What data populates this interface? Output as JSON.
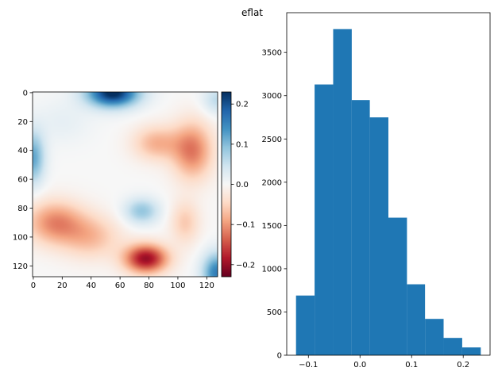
{
  "figure_title": "eflat",
  "colors": {
    "hist_bar": "#1f77b4",
    "axis": "#000000",
    "background": "#ffffff"
  },
  "chart_data": [
    {
      "type": "heatmap",
      "colormap": "RdBu",
      "x_range": [
        0,
        127
      ],
      "y_range": [
        0,
        127
      ],
      "y_inverted": true,
      "x_ticks": [
        "0",
        "20",
        "40",
        "60",
        "80",
        "100",
        "120"
      ],
      "y_ticks": [
        "0",
        "20",
        "40",
        "60",
        "80",
        "100",
        "120"
      ],
      "colorbar": {
        "range": [
          -0.23,
          0.23
        ],
        "ticks": [
          {
            "value": 0.2,
            "label": "0.2"
          },
          {
            "value": 0.1,
            "label": "0.1"
          },
          {
            "value": 0.0,
            "label": "0.0"
          },
          {
            "value": -0.1,
            "label": "−0.1"
          },
          {
            "value": -0.2,
            "label": "−0.2"
          }
        ]
      },
      "blobs": [
        {
          "x": 55,
          "y": 0,
          "sx": 18,
          "sy": 10,
          "amp": 0.24
        },
        {
          "x": 0,
          "y": 45,
          "sx": 8,
          "sy": 18,
          "amp": 0.12
        },
        {
          "x": 127,
          "y": 125,
          "sx": 10,
          "sy": 14,
          "amp": 0.16
        },
        {
          "x": 127,
          "y": 5,
          "sx": 10,
          "sy": 10,
          "amp": 0.06
        },
        {
          "x": 75,
          "y": 82,
          "sx": 12,
          "sy": 9,
          "amp": 0.09
        },
        {
          "x": 20,
          "y": 20,
          "sx": 20,
          "sy": 15,
          "amp": 0.02
        },
        {
          "x": 78,
          "y": 115,
          "sx": 15,
          "sy": 10,
          "amp": -0.2
        },
        {
          "x": 15,
          "y": 90,
          "sx": 20,
          "sy": 15,
          "amp": -0.11
        },
        {
          "x": 40,
          "y": 100,
          "sx": 20,
          "sy": 15,
          "amp": -0.07
        },
        {
          "x": 110,
          "y": 40,
          "sx": 14,
          "sy": 20,
          "amp": -0.12
        },
        {
          "x": 85,
          "y": 35,
          "sx": 16,
          "sy": 12,
          "amp": -0.08
        },
        {
          "x": 105,
          "y": 90,
          "sx": 10,
          "sy": 15,
          "amp": -0.06
        }
      ]
    },
    {
      "type": "bar",
      "subtype": "histogram",
      "bin_edges": [
        -0.124,
        -0.088,
        -0.052,
        -0.016,
        0.019,
        0.055,
        0.091,
        0.126,
        0.162,
        0.198,
        0.234
      ],
      "values": [
        690,
        3130,
        3770,
        2950,
        2750,
        1590,
        820,
        420,
        200,
        90
      ],
      "xlim": [
        -0.142,
        0.252
      ],
      "ylim": [
        0,
        3960
      ],
      "x_ticks": [
        {
          "value": -0.1,
          "label": "−0.1"
        },
        {
          "value": 0.0,
          "label": "0.0"
        },
        {
          "value": 0.1,
          "label": "0.1"
        },
        {
          "value": 0.2,
          "label": "0.2"
        }
      ],
      "y_ticks": [
        {
          "value": 0,
          "label": "0"
        },
        {
          "value": 500,
          "label": "500"
        },
        {
          "value": 1000,
          "label": "1000"
        },
        {
          "value": 1500,
          "label": "1500"
        },
        {
          "value": 2000,
          "label": "2000"
        },
        {
          "value": 2500,
          "label": "2500"
        },
        {
          "value": 3000,
          "label": "3000"
        },
        {
          "value": 3500,
          "label": "3500"
        }
      ]
    }
  ]
}
